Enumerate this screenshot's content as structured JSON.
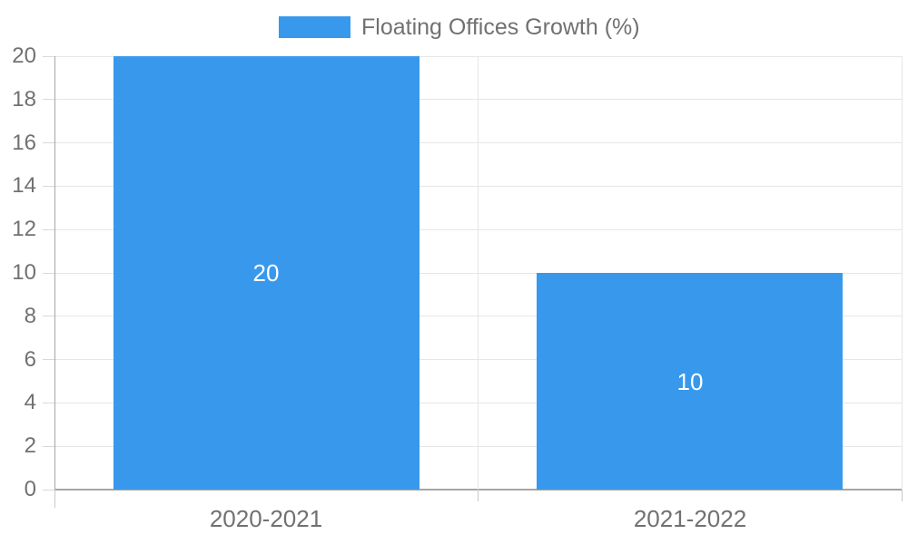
{
  "legend": {
    "label": "Floating Offices Growth (%)",
    "swatch_color": "#3899ec"
  },
  "chart_data": {
    "type": "bar",
    "title": "Floating Offices Growth (%)",
    "categories": [
      "2020-2021",
      "2021-2022"
    ],
    "values": [
      20,
      10
    ],
    "bar_labels": [
      "20",
      "10"
    ],
    "xlabel": "",
    "ylabel": "",
    "ylim": [
      0,
      20
    ],
    "yticks": [
      0,
      2,
      4,
      6,
      8,
      10,
      12,
      14,
      16,
      18,
      20
    ],
    "grid": true,
    "legend_position": "top-center",
    "bar_color": "#3899ec",
    "bar_value_label_color": "#ffffff",
    "axis_text_color": "#717171"
  }
}
